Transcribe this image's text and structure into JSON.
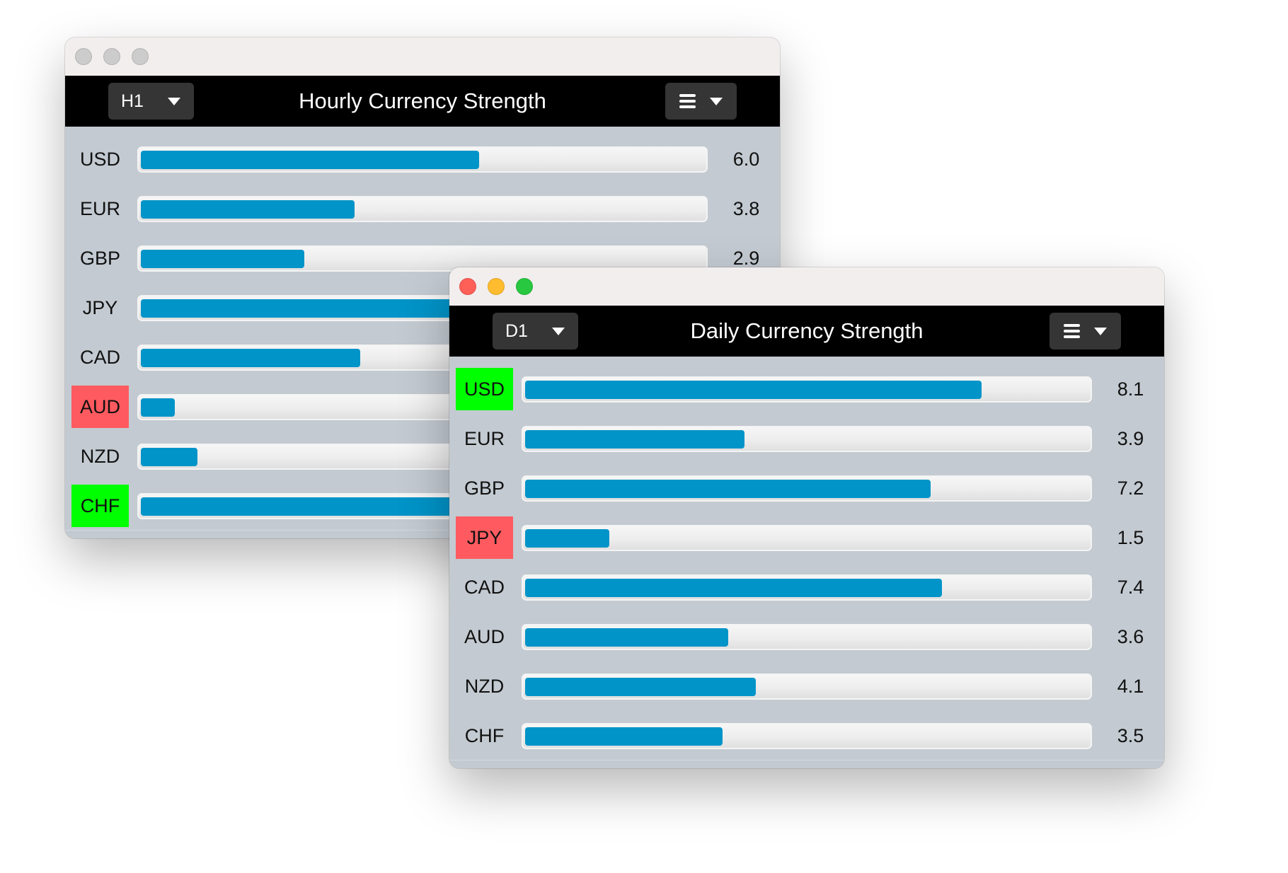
{
  "colors": {
    "bar_fill": "#0094c8",
    "strong": "#00ff00",
    "weak": "#ff5a5f",
    "header": "#000000",
    "panel": "#c3cad1"
  },
  "scale_max": 10,
  "windows": [
    {
      "title": "Hourly Currency Strength",
      "timeframe": "H1",
      "active": false,
      "rows": [
        {
          "currency": "USD",
          "value": "6.0",
          "level": 6.0,
          "highlight": ""
        },
        {
          "currency": "EUR",
          "value": "3.8",
          "level": 3.8,
          "highlight": ""
        },
        {
          "currency": "GBP",
          "value": "2.9",
          "level": 2.9,
          "highlight": ""
        },
        {
          "currency": "JPY",
          "value": null,
          "level": 6.0,
          "highlight": ""
        },
        {
          "currency": "CAD",
          "value": null,
          "level": 3.9,
          "highlight": ""
        },
        {
          "currency": "AUD",
          "value": null,
          "level": 0.6,
          "highlight": "weak"
        },
        {
          "currency": "NZD",
          "value": null,
          "level": 1.0,
          "highlight": ""
        },
        {
          "currency": "CHF",
          "value": null,
          "level": 6.0,
          "highlight": "strong"
        }
      ]
    },
    {
      "title": "Daily Currency Strength",
      "timeframe": "D1",
      "active": true,
      "rows": [
        {
          "currency": "USD",
          "value": "8.1",
          "level": 8.1,
          "highlight": "strong"
        },
        {
          "currency": "EUR",
          "value": "3.9",
          "level": 3.9,
          "highlight": ""
        },
        {
          "currency": "GBP",
          "value": "7.2",
          "level": 7.2,
          "highlight": ""
        },
        {
          "currency": "JPY",
          "value": "1.5",
          "level": 1.5,
          "highlight": "weak"
        },
        {
          "currency": "CAD",
          "value": "7.4",
          "level": 7.4,
          "highlight": ""
        },
        {
          "currency": "AUD",
          "value": "3.6",
          "level": 3.6,
          "highlight": ""
        },
        {
          "currency": "NZD",
          "value": "4.1",
          "level": 4.1,
          "highlight": ""
        },
        {
          "currency": "CHF",
          "value": "3.5",
          "level": 3.5,
          "highlight": ""
        }
      ]
    }
  ]
}
